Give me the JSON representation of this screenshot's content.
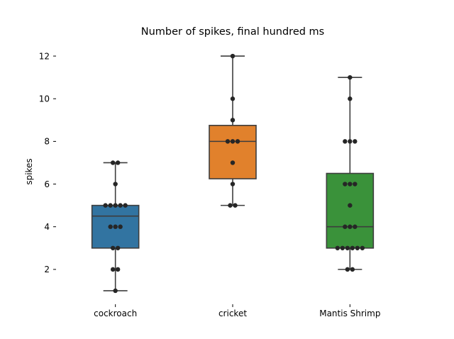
{
  "chart_data": {
    "type": "boxplot",
    "title": "Number of spikes, final hundred ms",
    "xlabel": "",
    "ylabel": "spikes",
    "categories": [
      "cockroach",
      "cricket",
      "Mantis Shrimp"
    ],
    "yticks": [
      2,
      4,
      6,
      8,
      10,
      12
    ],
    "ylim": [
      0.4,
      12.7
    ],
    "grid": false,
    "colors": [
      "#3274a1",
      "#e1812c",
      "#3a923a"
    ],
    "point_color": "#262626",
    "series": [
      {
        "category": "cockroach",
        "q1": 3,
        "median": 4.5,
        "q3": 5,
        "whisker_low": 1,
        "whisker_high": 7,
        "points": [
          1,
          2,
          2,
          3,
          3,
          4,
          4,
          4,
          5,
          5,
          5,
          5,
          5,
          6,
          7,
          7
        ]
      },
      {
        "category": "cricket",
        "q1": 6.25,
        "median": 8,
        "q3": 8.75,
        "whisker_low": 5,
        "whisker_high": 12,
        "points": [
          5,
          5,
          6,
          7,
          8,
          8,
          8,
          9,
          10,
          12
        ]
      },
      {
        "category": "Mantis Shrimp",
        "q1": 3,
        "median": 4,
        "q3": 6.5,
        "whisker_low": 2,
        "whisker_high": 11,
        "points": [
          2,
          2,
          3,
          3,
          3,
          3,
          3,
          3,
          4,
          4,
          4,
          5,
          6,
          6,
          6,
          8,
          8,
          8,
          10,
          11
        ]
      }
    ]
  }
}
